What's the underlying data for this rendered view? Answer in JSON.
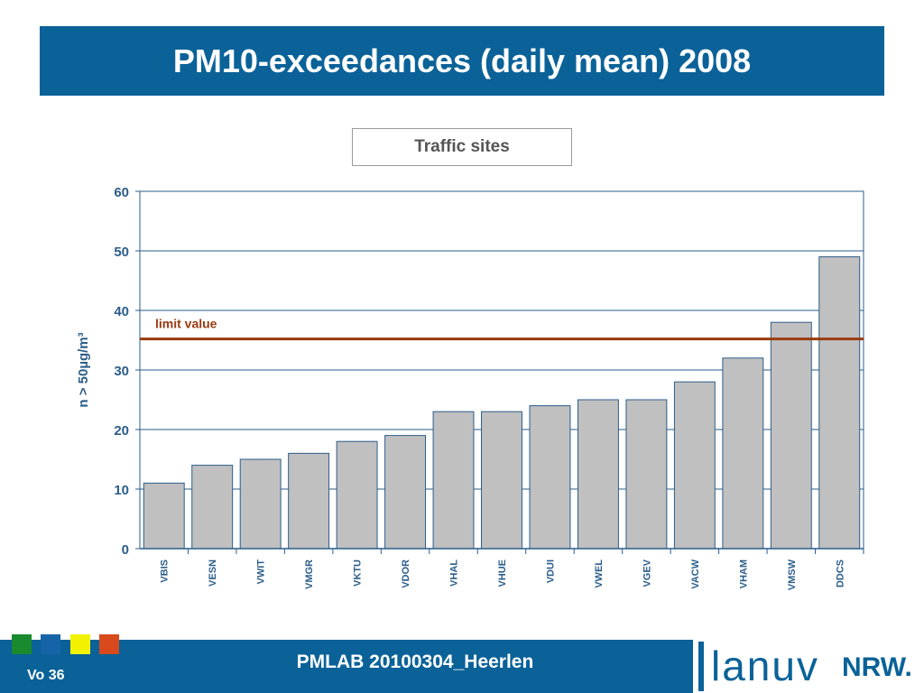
{
  "slide": {
    "title": "PM10-exceedances (daily mean) 2008",
    "footer": "PMLAB 20100304_Heerlen",
    "slide_number": "Vo 36",
    "logo_text": "lanuv",
    "logo_suffix": "NRW.",
    "color_squares": [
      "#1a8a2e",
      "#1564a8",
      "#f2f200",
      "#d84a1b"
    ]
  },
  "chart_data": {
    "type": "bar",
    "title": "Traffic sites",
    "ylabel": "n > 50µg/m³",
    "xlabel": "",
    "ylim": [
      0,
      60
    ],
    "yticks": [
      0,
      10,
      20,
      30,
      40,
      50,
      60
    ],
    "grid": true,
    "categories": [
      "VBIS",
      "VESN",
      "VWIT",
      "VMGR",
      "VKTU",
      "VDOR",
      "VHAL",
      "VHUE",
      "VDUI",
      "VWEL",
      "VGEV",
      "VACW",
      "VHAM",
      "VMSW",
      "DDCS"
    ],
    "values": [
      11,
      14,
      15,
      16,
      18,
      19,
      23,
      23,
      24,
      25,
      25,
      28,
      32,
      38,
      49
    ],
    "bar_color": "#c0c0c0",
    "reference_line": {
      "label": "limit value",
      "value": 35.2,
      "color": "#9b3a10"
    }
  }
}
